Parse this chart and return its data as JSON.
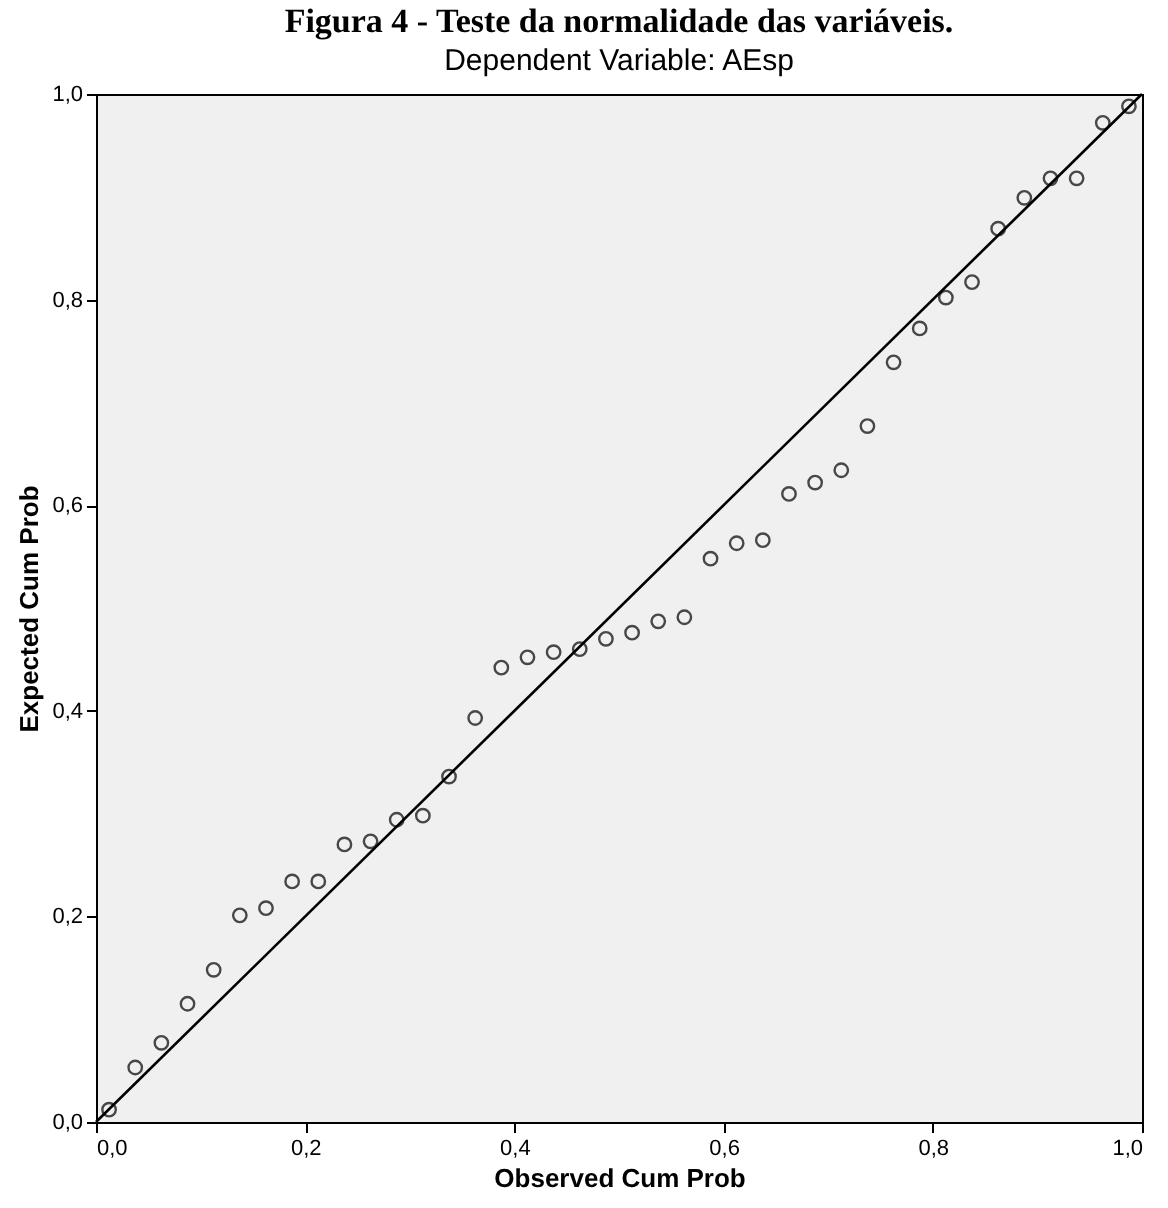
{
  "chart_data": {
    "type": "scatter",
    "title": "Dependent Variable: AEsp",
    "xlabel": "Observed Cum Prob",
    "ylabel": "Expected Cum Prob",
    "annotations": [
      "Figura 4 - Teste da normalidade das variáveis."
    ],
    "marker": "circle",
    "grid": false,
    "xlim": [
      0,
      1
    ],
    "ylim": [
      0,
      1
    ],
    "xticks": [
      {
        "value": 0,
        "label": "0,0"
      },
      {
        "value": 0.2,
        "label": "0,2"
      },
      {
        "value": 0.4,
        "label": "0,4"
      },
      {
        "value": 0.6,
        "label": "0,6"
      },
      {
        "value": 0.8,
        "label": "0,8"
      },
      {
        "value": 1,
        "label": "1,0"
      }
    ],
    "yticks": [
      {
        "value": 0,
        "label": "0,0"
      },
      {
        "value": 0.2,
        "label": "0,2"
      },
      {
        "value": 0.4,
        "label": "0,4"
      },
      {
        "value": 0.6,
        "label": "0,6"
      },
      {
        "value": 0.8,
        "label": "0,8"
      },
      {
        "value": 1,
        "label": "1,0"
      }
    ],
    "series": [
      {
        "color": "#000000",
        "x": [
          0.0125,
          0.0375,
          0.0625,
          0.0875,
          0.1125,
          0.1375,
          0.1625,
          0.1875,
          0.2125,
          0.2375,
          0.2625,
          0.2875,
          0.3125,
          0.3375,
          0.3625,
          0.3875,
          0.4125,
          0.4375,
          0.4625,
          0.4875,
          0.5125,
          0.5375,
          0.5625,
          0.5875,
          0.6125,
          0.6375,
          0.6625,
          0.6875,
          0.7125,
          0.7375,
          0.7625,
          0.7875,
          0.8125,
          0.8375,
          0.8625,
          0.8875,
          0.9125,
          0.9375,
          0.9625,
          0.9875
        ],
        "values": [
          0.012,
          0.053,
          0.077,
          0.115,
          0.148,
          0.201,
          0.208,
          0.234,
          0.234,
          0.27,
          0.273,
          0.294,
          0.298,
          0.336,
          0.393,
          0.442,
          0.452,
          0.457,
          0.46,
          0.47,
          0.476,
          0.487,
          0.491,
          0.548,
          0.563,
          0.566,
          0.611,
          0.622,
          0.634,
          0.677,
          0.739,
          0.772,
          0.802,
          0.817,
          0.869,
          0.899,
          0.918,
          0.918,
          0.972,
          0.988
        ]
      },
      {
        "type": "line",
        "color": "#000000",
        "line_style": "solid",
        "marker": "none",
        "x": [
          0,
          1
        ],
        "values": [
          0,
          1
        ]
      }
    ]
  }
}
